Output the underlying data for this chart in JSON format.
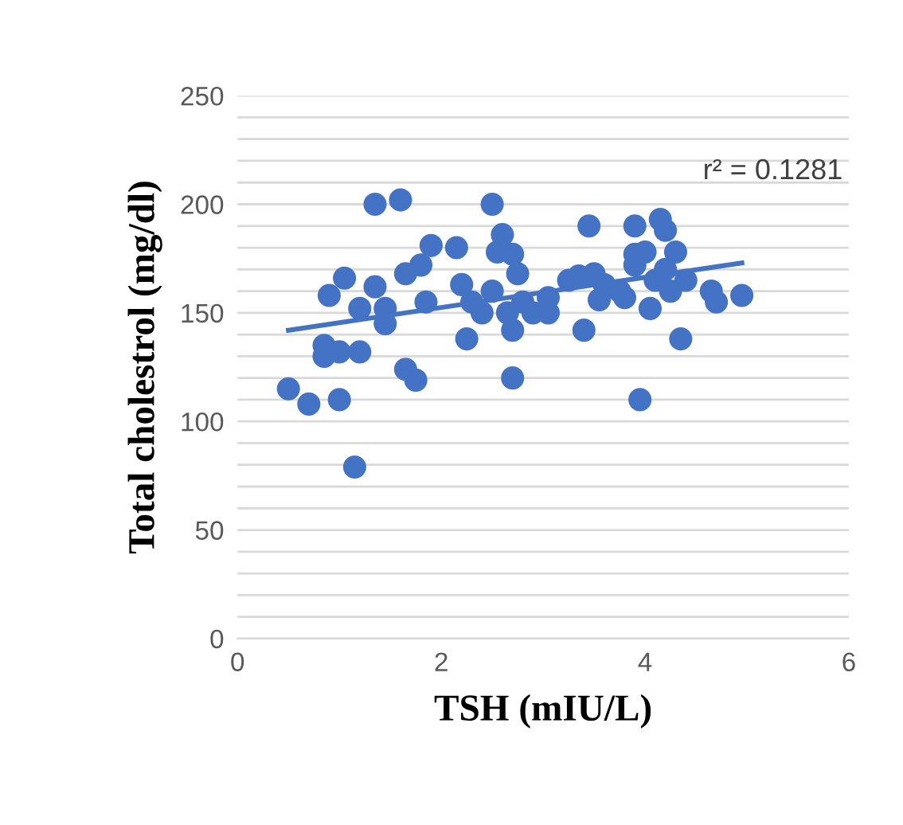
{
  "chart_data": {
    "type": "scatter",
    "xlabel": "TSH (mIU/L)",
    "ylabel": "Total cholestrol (mg/dl)",
    "annotations": [
      "r² = 0.1281"
    ],
    "series": [
      {
        "type": "scatter",
        "color": "#4472c4",
        "marker": "circle",
        "x": [
          0.5,
          0.7,
          0.85,
          0.85,
          0.9,
          1.0,
          1.0,
          1.05,
          1.15,
          1.2,
          1.2,
          1.35,
          1.35,
          1.45,
          1.45,
          1.6,
          1.65,
          1.65,
          1.75,
          1.8,
          1.85,
          1.9,
          2.15,
          2.2,
          2.25,
          2.3,
          2.4,
          2.5,
          2.5,
          2.55,
          2.6,
          2.65,
          2.7,
          2.7,
          2.7,
          2.75,
          2.8,
          2.9,
          3.05,
          3.05,
          3.25,
          3.35,
          3.4,
          3.45,
          3.5,
          3.55,
          3.6,
          3.75,
          3.8,
          3.9,
          3.9,
          3.95,
          4.05,
          4.1,
          4.15,
          4.2,
          4.2,
          4.25,
          4.3,
          4.35,
          4.4,
          4.65,
          4.7,
          4.95,
          3.9,
          4.0
        ],
        "values": [
          115,
          108,
          135,
          130,
          158,
          110,
          132,
          166,
          79,
          132,
          152,
          162,
          200,
          152,
          145,
          202,
          168,
          124,
          119,
          172,
          155,
          181,
          180,
          163,
          138,
          155,
          150,
          200,
          160,
          178,
          186,
          150,
          120,
          142,
          177,
          168,
          155,
          150,
          157,
          150,
          165,
          167,
          142,
          190,
          168,
          156,
          163,
          160,
          157,
          190,
          177,
          110,
          152,
          165,
          193,
          188,
          170,
          160,
          178,
          138,
          165,
          160,
          155,
          158,
          172,
          178
        ]
      },
      {
        "type": "line",
        "color": "#4472c4",
        "marker": "none",
        "line_style": "solid",
        "x": [
          0.5,
          4.95
        ],
        "values": [
          142,
          173
        ]
      }
    ],
    "xlim": [
      0,
      6
    ],
    "xticks": [
      0,
      2,
      4,
      6
    ],
    "ylim": [
      0,
      250
    ],
    "yticks": [
      0,
      {
        "value": 10,
        "label": null
      },
      {
        "value": 20,
        "label": null
      },
      {
        "value": 30,
        "label": null
      },
      {
        "value": 40,
        "label": null
      },
      50,
      {
        "value": 60,
        "label": null
      },
      {
        "value": 70,
        "label": null
      },
      {
        "value": 80,
        "label": null
      },
      {
        "value": 90,
        "label": null
      },
      100,
      {
        "value": 110,
        "label": null
      },
      {
        "value": 120,
        "label": null
      },
      {
        "value": 130,
        "label": null
      },
      {
        "value": 140,
        "label": null
      },
      150,
      {
        "value": 160,
        "label": null
      },
      {
        "value": 170,
        "label": null
      },
      {
        "value": 180,
        "label": null
      },
      {
        "value": 190,
        "label": null
      },
      200,
      {
        "value": 210,
        "label": null
      },
      {
        "value": 220,
        "label": null
      },
      {
        "value": 230,
        "label": null
      },
      {
        "value": 240,
        "label": null
      },
      250
    ],
    "grid": "y",
    "legend": false
  }
}
